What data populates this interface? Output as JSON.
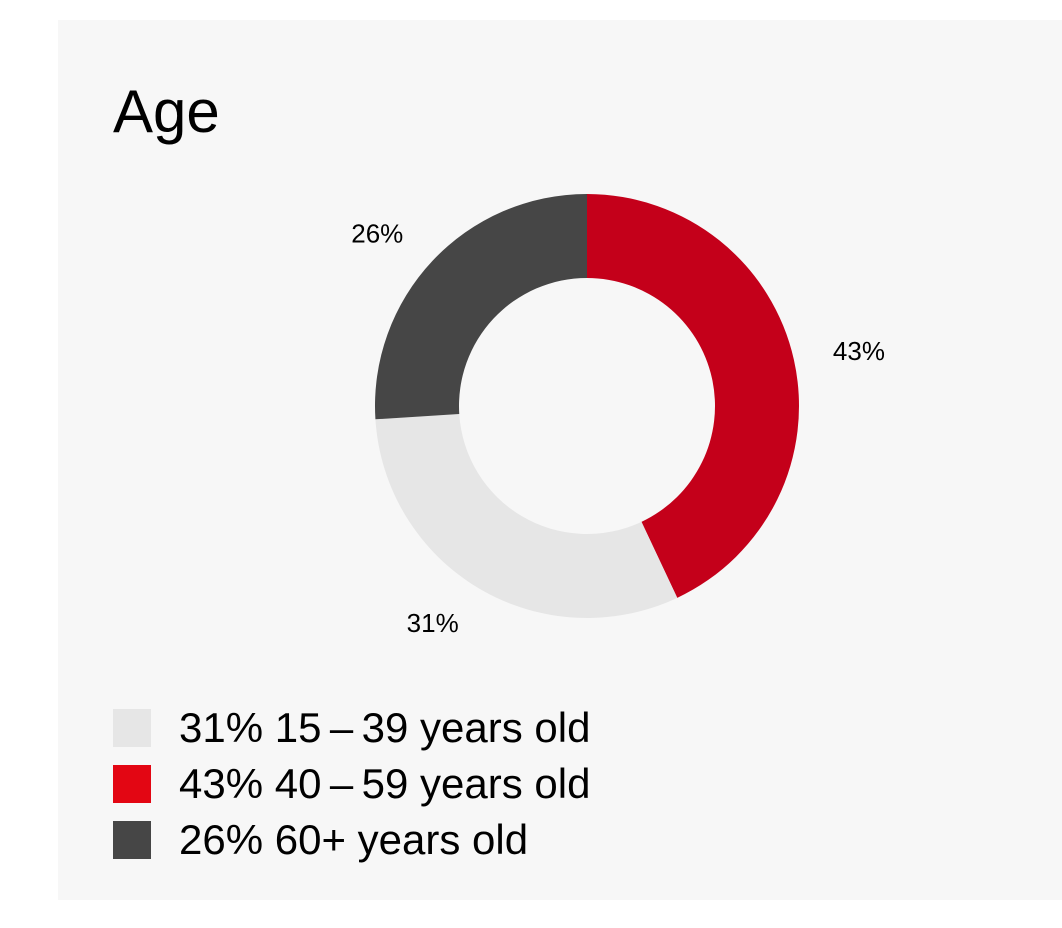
{
  "title": "Age",
  "chart_data": {
    "type": "pie",
    "subtype": "donut",
    "slices": [
      {
        "value": 43,
        "label": "43%",
        "color": "#c4001a"
      },
      {
        "value": 31,
        "label": "31%",
        "color": "#e6e6e6"
      },
      {
        "value": 26,
        "label": "26%",
        "color": "#464646"
      }
    ],
    "legend": [
      {
        "text": "31% 15 – 39 years old",
        "color": "#e6e6e6"
      },
      {
        "text": "43% 40 – 59 years old",
        "color": "#e30613"
      },
      {
        "text": "26% 60+ years old",
        "color": "#464646"
      }
    ],
    "legend_position": "bottom-left"
  }
}
